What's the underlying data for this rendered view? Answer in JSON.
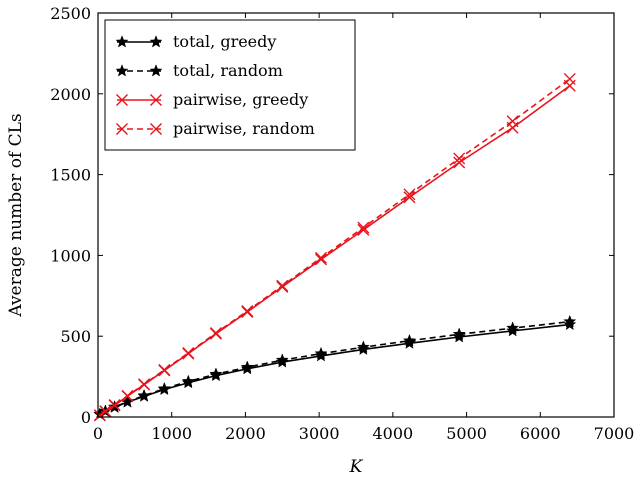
{
  "chart_data": {
    "type": "line",
    "title": "",
    "xlabel": "K",
    "ylabel": "Average number of CLs",
    "xlim": [
      0,
      7000
    ],
    "ylim": [
      0,
      2500
    ],
    "xticks": [
      0,
      1000,
      2000,
      3000,
      4000,
      5000,
      6000,
      7000
    ],
    "yticks": [
      0,
      500,
      1000,
      1500,
      2000,
      2500
    ],
    "xtick_labels": [
      "0",
      "1000",
      "2000",
      "3000",
      "4000",
      "5000",
      "6000",
      "7000"
    ],
    "ytick_labels": [
      "0",
      "500",
      "1000",
      "1500",
      "2000",
      "2500"
    ],
    "grid": false,
    "legend_position": "top-left",
    "x": [
      25,
      100,
      225,
      400,
      625,
      900,
      1225,
      1600,
      2025,
      2500,
      3025,
      3600,
      4225,
      4900,
      5625,
      6400
    ],
    "series": [
      {
        "name": "total, greedy",
        "color": "#000000",
        "linestyle": "solid",
        "marker": "star",
        "values": [
          16,
          35,
          60,
          92,
          128,
          170,
          212,
          256,
          298,
          340,
          378,
          418,
          456,
          495,
          533,
          572
        ]
      },
      {
        "name": "total, random",
        "color": "#000000",
        "linestyle": "dashed",
        "marker": "star",
        "values": [
          16,
          36,
          62,
          95,
          132,
          175,
          220,
          265,
          308,
          352,
          392,
          432,
          472,
          512,
          550,
          590
        ]
      },
      {
        "name": "pairwise, greedy",
        "color": "#e8141b",
        "linestyle": "solid",
        "marker": "x",
        "values": [
          10,
          35,
          72,
          129,
          200,
          288,
          392,
          515,
          650,
          805,
          975,
          1158,
          1360,
          1575,
          1790,
          2050
        ]
      },
      {
        "name": "pairwise, random",
        "color": "#e8141b",
        "linestyle": "dashed",
        "marker": "x",
        "values": [
          11,
          36,
          74,
          131,
          203,
          292,
          396,
          520,
          656,
          812,
          985,
          1172,
          1378,
          1600,
          1830,
          2092
        ]
      }
    ]
  }
}
